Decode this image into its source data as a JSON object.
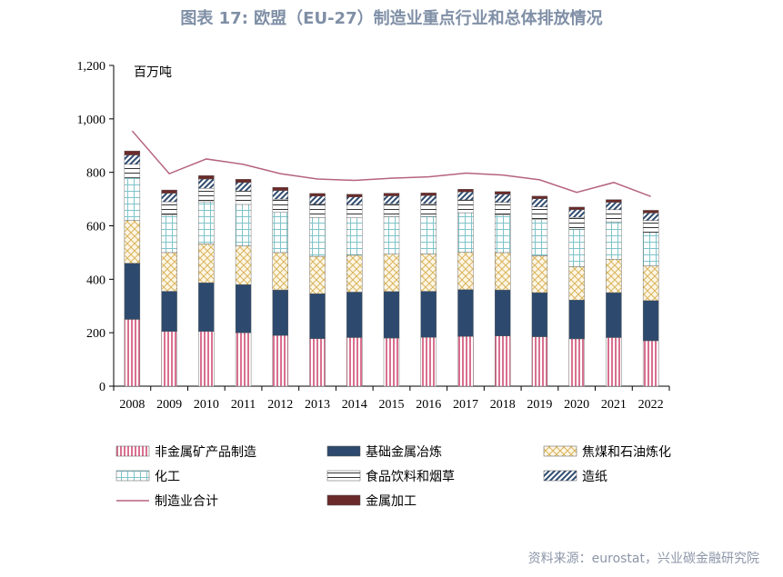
{
  "title": "图表 17: 欧盟（EU-27）制造业重点行业和总体排放情况",
  "source": "资料来源：eurostat，兴业碳金融研究院",
  "chart_data": {
    "type": "bar",
    "stacked": true,
    "unit_label": "百万吨",
    "categories": [
      "2008",
      "2009",
      "2010",
      "2011",
      "2012",
      "2013",
      "2014",
      "2015",
      "2016",
      "2017",
      "2018",
      "2019",
      "2020",
      "2021",
      "2022"
    ],
    "ylim": [
      0,
      1200
    ],
    "yticks": [
      0,
      200,
      400,
      600,
      800,
      1000,
      1200
    ],
    "ytick_labels": [
      "0",
      "200",
      "400",
      "600",
      "800",
      "1,000",
      "1,200"
    ],
    "legend_position": "bottom",
    "series": [
      {
        "name": "非金属矿产品制造",
        "pattern": "vlines",
        "color": "#d9708f",
        "values": [
          250,
          205,
          205,
          200,
          190,
          178,
          182,
          180,
          183,
          186,
          188,
          185,
          177,
          182,
          170
        ]
      },
      {
        "name": "基础金属冶炼",
        "pattern": "solid",
        "color": "#2d4a6e",
        "values": [
          210,
          150,
          182,
          180,
          170,
          168,
          170,
          174,
          172,
          175,
          172,
          165,
          145,
          168,
          150
        ]
      },
      {
        "name": "焦煤和石油炼化",
        "pattern": "cross",
        "color": "#d9b45a",
        "values": [
          160,
          145,
          145,
          145,
          140,
          140,
          138,
          140,
          140,
          140,
          140,
          138,
          125,
          125,
          130
        ]
      },
      {
        "name": "化工",
        "pattern": "grid",
        "color": "#7fc4c9",
        "values": [
          160,
          140,
          158,
          155,
          150,
          145,
          140,
          140,
          140,
          148,
          140,
          135,
          140,
          140,
          125
        ]
      },
      {
        "name": "食品饮料和烟草",
        "pattern": "hlines",
        "color": "#333333",
        "values": [
          50,
          50,
          50,
          50,
          50,
          50,
          48,
          48,
          48,
          48,
          48,
          48,
          45,
          45,
          45
        ]
      },
      {
        "name": "造纸",
        "pattern": "diag",
        "color": "#2d4a6e",
        "values": [
          35,
          32,
          35,
          32,
          32,
          30,
          30,
          30,
          30,
          30,
          30,
          30,
          28,
          28,
          28
        ]
      },
      {
        "name": "金属加工",
        "pattern": "solid",
        "color": "#6b2a2a",
        "values": [
          15,
          12,
          13,
          12,
          12,
          10,
          10,
          10,
          10,
          10,
          10,
          10,
          10,
          10,
          10
        ]
      }
    ],
    "line_series": {
      "name": "制造业合计",
      "color": "#b5637e",
      "values": [
        955,
        795,
        850,
        830,
        795,
        775,
        770,
        778,
        783,
        797,
        790,
        772,
        725,
        762,
        710
      ]
    }
  }
}
